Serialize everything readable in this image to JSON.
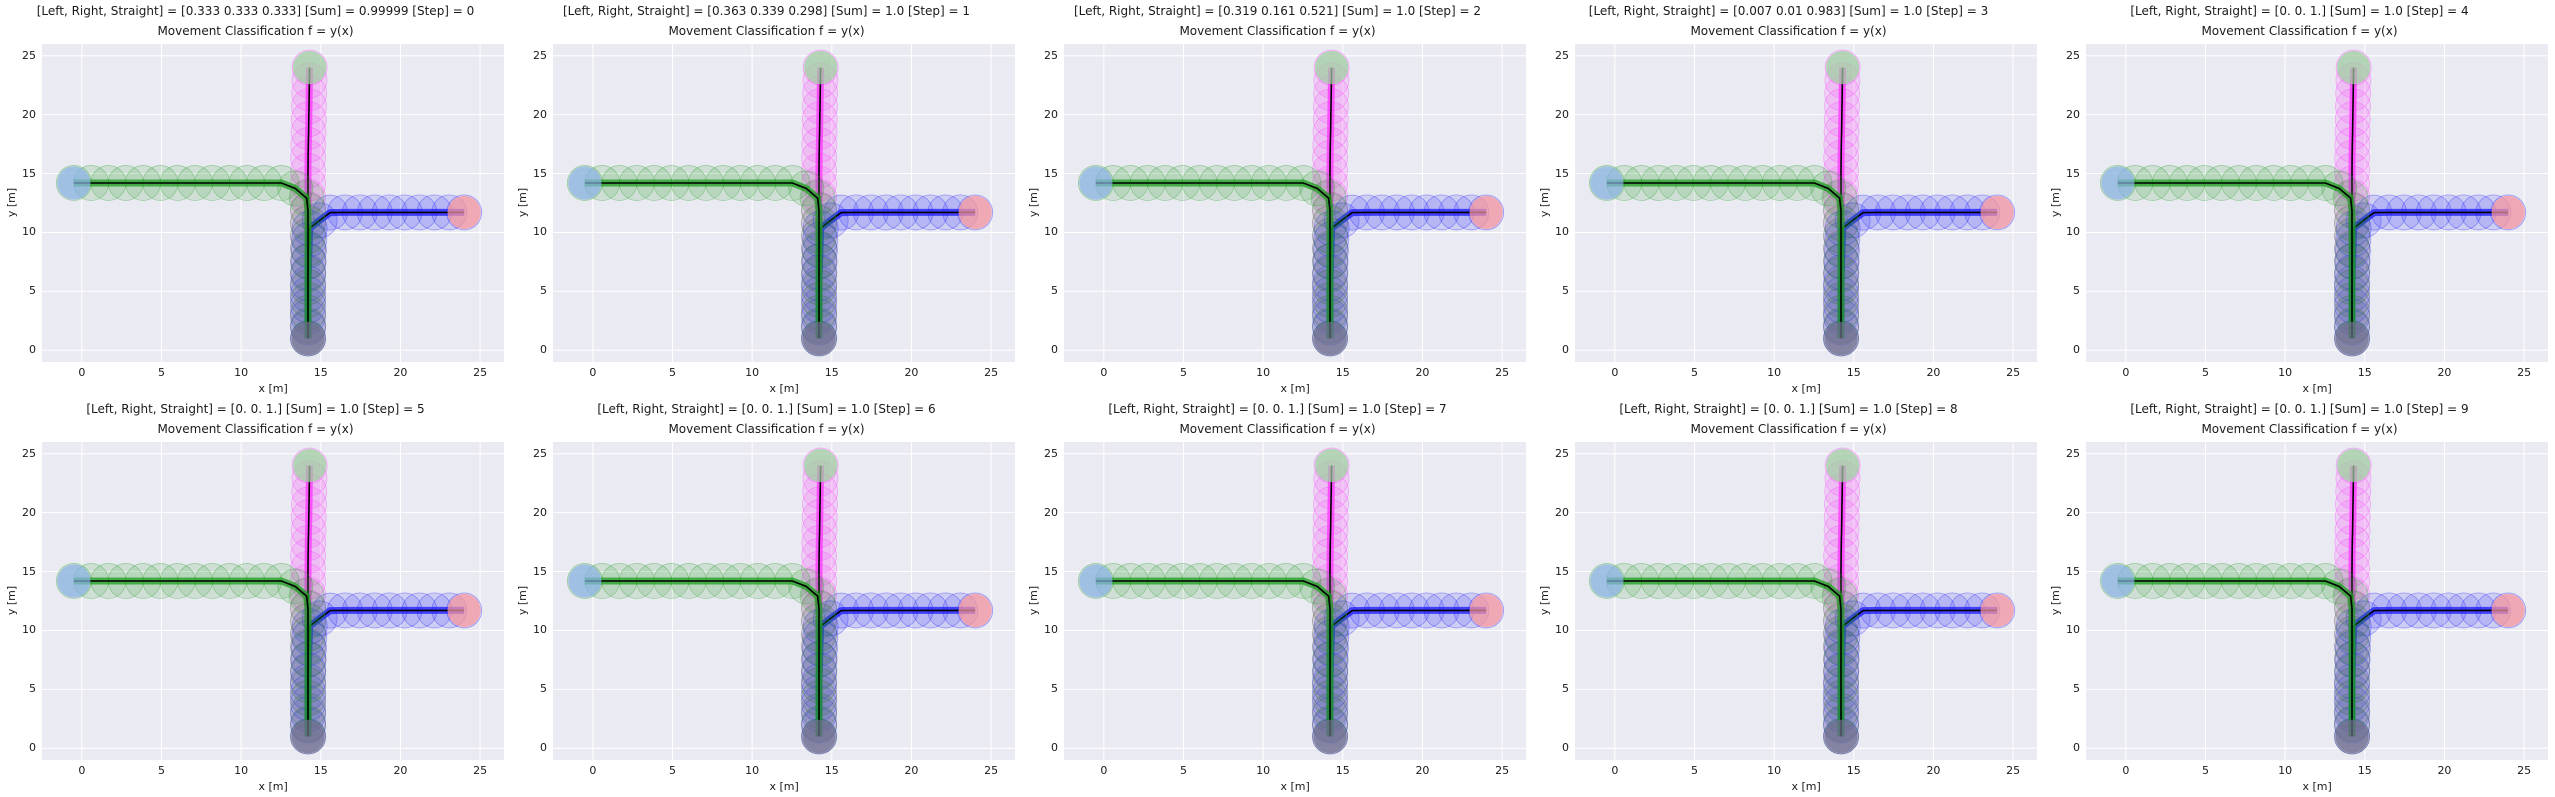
{
  "chart_data": [
    {
      "type": "line",
      "title": "[Left, Right, Straight] = [0.333 0.333 0.333]   [Sum] = 0.99999   [Step] = 0",
      "subtitle": "Movement Classification f = y(x)",
      "xlabel": "x [m]",
      "ylabel": "y [m]",
      "xticks": [
        "0",
        "5",
        "10",
        "15",
        "20",
        "25"
      ],
      "yticks": [
        "0",
        "5",
        "10",
        "15",
        "20",
        "25"
      ],
      "xlim": [
        -2.5,
        26.5
      ],
      "ylim": [
        -1,
        26
      ],
      "grid": true,
      "probabilities": {
        "left": 0.333,
        "right": 0.333,
        "straight": 0.333
      },
      "sum": 0.99999,
      "step": 0
    },
    {
      "type": "line",
      "title": "[Left, Right, Straight] = [0.363 0.339 0.298]   [Sum] = 1.0   [Step] = 1",
      "subtitle": "Movement Classification f = y(x)",
      "xlabel": "x [m]",
      "ylabel": "y [m]",
      "xticks": [
        "0",
        "5",
        "10",
        "15",
        "20",
        "25"
      ],
      "yticks": [
        "0",
        "5",
        "10",
        "15",
        "20",
        "25"
      ],
      "xlim": [
        -2.5,
        26.5
      ],
      "ylim": [
        -1,
        26
      ],
      "grid": true,
      "probabilities": {
        "left": 0.363,
        "right": 0.339,
        "straight": 0.298
      },
      "sum": 1.0,
      "step": 1
    },
    {
      "type": "line",
      "title": "[Left, Right, Straight] = [0.319 0.161 0.521]   [Sum] = 1.0   [Step] = 2",
      "subtitle": "Movement Classification f = y(x)",
      "xlabel": "x [m]",
      "ylabel": "y [m]",
      "xticks": [
        "0",
        "5",
        "10",
        "15",
        "20",
        "25"
      ],
      "yticks": [
        "0",
        "5",
        "10",
        "15",
        "20",
        "25"
      ],
      "xlim": [
        -2.5,
        26.5
      ],
      "ylim": [
        -1,
        26
      ],
      "grid": true,
      "probabilities": {
        "left": 0.319,
        "right": 0.161,
        "straight": 0.521
      },
      "sum": 1.0,
      "step": 2
    },
    {
      "type": "line",
      "title": "[Left, Right, Straight] = [0.007 0.01  0.983]   [Sum] = 1.0   [Step] = 3",
      "subtitle": "Movement Classification f = y(x)",
      "xlabel": "x [m]",
      "ylabel": "y [m]",
      "xticks": [
        "0",
        "5",
        "10",
        "15",
        "20",
        "25"
      ],
      "yticks": [
        "0",
        "5",
        "10",
        "15",
        "20",
        "25"
      ],
      "xlim": [
        -2.5,
        26.5
      ],
      "ylim": [
        -1,
        26
      ],
      "grid": true,
      "probabilities": {
        "left": 0.007,
        "right": 0.01,
        "straight": 0.983
      },
      "sum": 1.0,
      "step": 3
    },
    {
      "type": "line",
      "title": "[Left, Right, Straight] = [0. 0. 1.]   [Sum] = 1.0   [Step] = 4",
      "subtitle": "Movement Classification f = y(x)",
      "xlabel": "x [m]",
      "ylabel": "y [m]",
      "xticks": [
        "0",
        "5",
        "10",
        "15",
        "20",
        "25"
      ],
      "yticks": [
        "0",
        "5",
        "10",
        "15",
        "20",
        "25"
      ],
      "xlim": [
        -2.5,
        26.5
      ],
      "ylim": [
        -1,
        26
      ],
      "grid": true,
      "probabilities": {
        "left": 0,
        "right": 0,
        "straight": 1
      },
      "sum": 1.0,
      "step": 4
    },
    {
      "type": "line",
      "title": "[Left, Right, Straight] = [0. 0. 1.]   [Sum] = 1.0   [Step] = 5",
      "subtitle": "Movement Classification f = y(x)",
      "xlabel": "x [m]",
      "ylabel": "y [m]",
      "xticks": [
        "0",
        "5",
        "10",
        "15",
        "20",
        "25"
      ],
      "yticks": [
        "0",
        "5",
        "10",
        "15",
        "20",
        "25"
      ],
      "xlim": [
        -2.5,
        26.5
      ],
      "ylim": [
        -1,
        26
      ],
      "grid": true,
      "probabilities": {
        "left": 0,
        "right": 0,
        "straight": 1
      },
      "sum": 1.0,
      "step": 5
    },
    {
      "type": "line",
      "title": "[Left, Right, Straight] = [0. 0. 1.]   [Sum] = 1.0   [Step] = 6",
      "subtitle": "Movement Classification f = y(x)",
      "xlabel": "x [m]",
      "ylabel": "y [m]",
      "xticks": [
        "0",
        "5",
        "10",
        "15",
        "20",
        "25"
      ],
      "yticks": [
        "0",
        "5",
        "10",
        "15",
        "20",
        "25"
      ],
      "xlim": [
        -2.5,
        26.5
      ],
      "ylim": [
        -1,
        26
      ],
      "grid": true,
      "probabilities": {
        "left": 0,
        "right": 0,
        "straight": 1
      },
      "sum": 1.0,
      "step": 6
    },
    {
      "type": "line",
      "title": "[Left, Right, Straight] = [0. 0. 1.]   [Sum] = 1.0   [Step] = 7",
      "subtitle": "Movement Classification f = y(x)",
      "xlabel": "x [m]",
      "ylabel": "y [m]",
      "xticks": [
        "0",
        "5",
        "10",
        "15",
        "20",
        "25"
      ],
      "yticks": [
        "0",
        "5",
        "10",
        "15",
        "20",
        "25"
      ],
      "xlim": [
        -2.5,
        26.5
      ],
      "ylim": [
        -1,
        26
      ],
      "grid": true,
      "probabilities": {
        "left": 0,
        "right": 0,
        "straight": 1
      },
      "sum": 1.0,
      "step": 7
    },
    {
      "type": "line",
      "title": "[Left, Right, Straight] = [0. 0. 1.]   [Sum] = 1.0   [Step] = 8",
      "subtitle": "Movement Classification f = y(x)",
      "xlabel": "x [m]",
      "ylabel": "y [m]",
      "xticks": [
        "0",
        "5",
        "10",
        "15",
        "20",
        "25"
      ],
      "yticks": [
        "0",
        "5",
        "10",
        "15",
        "20",
        "25"
      ],
      "xlim": [
        -2.5,
        26.5
      ],
      "ylim": [
        -1,
        26
      ],
      "grid": true,
      "probabilities": {
        "left": 0,
        "right": 0,
        "straight": 1
      },
      "sum": 1.0,
      "step": 8
    },
    {
      "type": "line",
      "title": "[Left, Right, Straight] = [0. 0. 1.]   [Sum] = 1.0   [Step] = 9",
      "subtitle": "Movement Classification f = y(x)",
      "xlabel": "x [m]",
      "ylabel": "y [m]",
      "xticks": [
        "0",
        "5",
        "10",
        "15",
        "20",
        "25"
      ],
      "yticks": [
        "0",
        "5",
        "10",
        "15",
        "20",
        "25"
      ],
      "xlim": [
        -2.5,
        26.5
      ],
      "ylim": [
        -1,
        26
      ],
      "grid": true,
      "probabilities": {
        "left": 0,
        "right": 0,
        "straight": 1
      },
      "sum": 1.0,
      "step": 9
    }
  ],
  "trajectories": {
    "left_path": {
      "x": [
        -0.5,
        13,
        14.2,
        14.2,
        14.2
      ],
      "y": [
        14.2,
        14.2,
        12.8,
        6,
        1
      ]
    },
    "right_path": {
      "x": [
        24,
        15.6,
        14.3,
        14.2,
        14.2
      ],
      "y": [
        11.7,
        11.7,
        10.4,
        6,
        1
      ]
    },
    "straight_path": {
      "x": [
        14.3,
        14.2,
        14.2,
        14.2
      ],
      "y": [
        24,
        16,
        8,
        1
      ]
    }
  },
  "colors": {
    "background": "#eaeaf2",
    "grid": "#ffffff",
    "left_lane": "#1e9e1e",
    "right_lane": "#1a1aff",
    "straight_lane": "#ff33ff",
    "predicted_path": "#000000",
    "start_marker": "#8ab1e8",
    "end_marker_straight": "#9bd39b",
    "end_marker_right": "#ff9999"
  }
}
